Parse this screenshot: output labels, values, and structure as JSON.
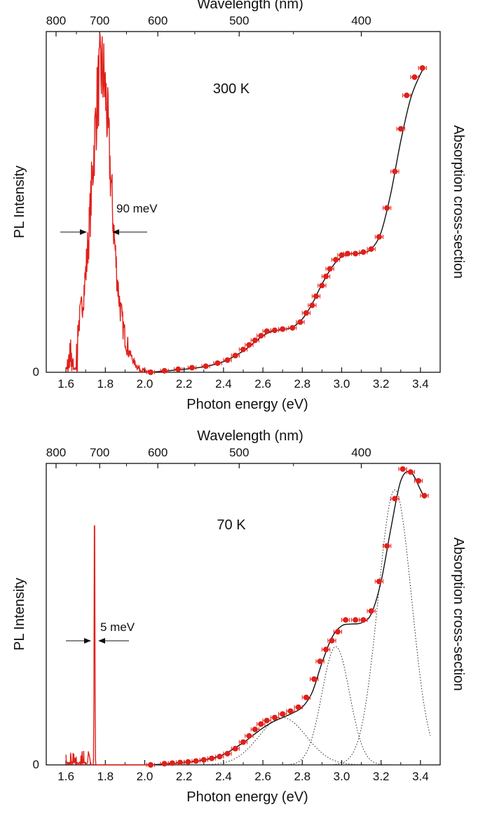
{
  "chart_data": [
    {
      "type": "line",
      "panel": "top",
      "temperature_label": "300 K",
      "xlabel": "Photon energy (eV)",
      "x2label": "Wavelength (nm)",
      "ylabel_left": "PL Intensity",
      "ylabel_right": "Absorption cross-section",
      "xlim": [
        1.5,
        3.5
      ],
      "ylim": [
        0,
        1.0
      ],
      "x_ticks": [
        "1.6",
        "1.8",
        "2.0",
        "2.2",
        "2.4",
        "2.6",
        "2.8",
        "3.0",
        "3.2",
        "3.4"
      ],
      "x2_ticks": [
        "800",
        "700",
        "600",
        "500",
        "400"
      ],
      "y_ticks": [
        "0"
      ],
      "annotation": "90 meV",
      "pl_peak": {
        "center": 1.78,
        "fwhm": 0.09,
        "height": 0.93
      },
      "pl_noise_onset": 1.6,
      "series": [
        {
          "kind": "absorption_points",
          "x": [
            2.03,
            2.1,
            2.17,
            2.24,
            2.31,
            2.37,
            2.42,
            2.46,
            2.5,
            2.53,
            2.56,
            2.59,
            2.62,
            2.66,
            2.7,
            2.75,
            2.79,
            2.82,
            2.85,
            2.87,
            2.9,
            2.92,
            2.94,
            2.97,
            3.0,
            3.03,
            3.07,
            3.11,
            3.15,
            3.19,
            3.23,
            3.27,
            3.3,
            3.33,
            3.37,
            3.41
          ],
          "y": [
            0.0,
            0.005,
            0.01,
            0.015,
            0.02,
            0.03,
            0.04,
            0.055,
            0.075,
            0.09,
            0.105,
            0.12,
            0.135,
            0.138,
            0.142,
            0.146,
            0.165,
            0.195,
            0.22,
            0.25,
            0.285,
            0.315,
            0.34,
            0.37,
            0.385,
            0.39,
            0.39,
            0.395,
            0.405,
            0.445,
            0.54,
            0.66,
            0.8,
            0.91,
            0.97,
            1.0
          ],
          "x_error": 0.02
        }
      ],
      "fit_curve": {
        "x": [
          2.03,
          2.1,
          2.2,
          2.3,
          2.4,
          2.5,
          2.55,
          2.6,
          2.65,
          2.7,
          2.75,
          2.8,
          2.85,
          2.9,
          2.95,
          3.0,
          3.05,
          3.1,
          3.15,
          3.2,
          3.25,
          3.3,
          3.35,
          3.4,
          3.42
        ],
        "y": [
          0.0,
          0.004,
          0.01,
          0.018,
          0.035,
          0.07,
          0.095,
          0.12,
          0.135,
          0.14,
          0.148,
          0.175,
          0.225,
          0.29,
          0.345,
          0.38,
          0.39,
          0.392,
          0.405,
          0.46,
          0.59,
          0.76,
          0.9,
          0.98,
          1.0
        ]
      }
    },
    {
      "type": "line",
      "panel": "bottom",
      "temperature_label": "70 K",
      "xlabel": "Photon energy (eV)",
      "x2label": "Wavelength (nm)",
      "ylabel_left": "PL Intensity",
      "ylabel_right": "Absorption cross-section",
      "xlim": [
        1.5,
        3.5
      ],
      "ylim": [
        0,
        1.0
      ],
      "x_ticks": [
        "1.6",
        "1.8",
        "2.0",
        "2.2",
        "2.4",
        "2.6",
        "2.8",
        "3.0",
        "3.2",
        "3.4"
      ],
      "x2_ticks": [
        "800",
        "700",
        "600",
        "500",
        "400"
      ],
      "y_ticks": [
        "0"
      ],
      "annotation": "5 meV",
      "pl_peak": {
        "center": 1.745,
        "fwhm": 0.005,
        "height": 0.98
      },
      "pl_noise_onset": 1.6,
      "series": [
        {
          "kind": "absorption_points",
          "x": [
            2.03,
            2.1,
            2.14,
            2.18,
            2.22,
            2.26,
            2.3,
            2.34,
            2.38,
            2.42,
            2.46,
            2.5,
            2.53,
            2.56,
            2.59,
            2.62,
            2.66,
            2.7,
            2.74,
            2.78,
            2.82,
            2.86,
            2.89,
            2.92,
            2.95,
            2.98,
            3.02,
            3.07,
            3.11,
            3.15,
            3.19,
            3.23,
            3.27,
            3.31,
            3.35,
            3.39,
            3.42
          ],
          "y": [
            0.0,
            0.004,
            0.006,
            0.008,
            0.01,
            0.013,
            0.017,
            0.022,
            0.028,
            0.038,
            0.055,
            0.077,
            0.098,
            0.12,
            0.138,
            0.15,
            0.16,
            0.172,
            0.182,
            0.195,
            0.228,
            0.29,
            0.35,
            0.39,
            0.42,
            0.45,
            0.49,
            0.49,
            0.49,
            0.52,
            0.62,
            0.74,
            0.9,
            1.0,
            0.99,
            0.96,
            0.91
          ],
          "x_error": 0.02
        }
      ],
      "fit_curve": {
        "x": [
          2.03,
          2.1,
          2.2,
          2.3,
          2.4,
          2.5,
          2.55,
          2.6,
          2.65,
          2.7,
          2.75,
          2.8,
          2.85,
          2.9,
          2.95,
          3.0,
          3.05,
          3.1,
          3.15,
          3.2,
          3.25,
          3.3,
          3.35,
          3.4,
          3.42
        ],
        "y": [
          0.0,
          0.003,
          0.008,
          0.016,
          0.035,
          0.075,
          0.1,
          0.125,
          0.145,
          0.16,
          0.175,
          0.195,
          0.245,
          0.345,
          0.43,
          0.47,
          0.476,
          0.48,
          0.51,
          0.62,
          0.8,
          0.96,
          0.99,
          0.93,
          0.9
        ]
      },
      "components": [
        {
          "center": 2.7,
          "width": 0.12,
          "height": 0.16
        },
        {
          "center": 2.97,
          "width": 0.07,
          "height": 0.4
        },
        {
          "center": 3.27,
          "width": 0.085,
          "height": 0.93
        }
      ]
    }
  ]
}
